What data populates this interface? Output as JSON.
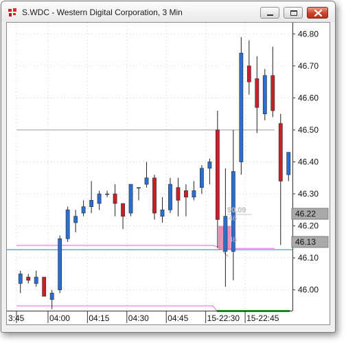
{
  "window": {
    "title": "S.WDC - Western Digital Corporation, 3 Min",
    "icon": "app-logo-icon",
    "buttons": [
      "minimize-icon",
      "maximize-icon",
      "close-icon"
    ]
  },
  "colors": {
    "up": "#2a6fd0",
    "down": "#c8202a",
    "grid": "#cfcfcf",
    "axis": "#333333",
    "pink": "#ef5fe8",
    "blue_line": "#2f7fd8",
    "gray_line": "#9b9b9b",
    "price_box": "#a9a9a9",
    "highlight": "#ea78b0",
    "green_bar": "#19b019"
  },
  "chart_data": {
    "type": "candlestick",
    "y_ticks": [
      "46.80",
      "46.70",
      "46.60",
      "46.50",
      "46.40",
      "46.30",
      "46.20",
      "46.10",
      "46.00"
    ],
    "y_tick_values": [
      46.8,
      46.7,
      46.6,
      46.5,
      46.4,
      46.3,
      46.2,
      46.1,
      46.0
    ],
    "ylim": [
      45.935,
      46.835
    ],
    "x_ticks": [
      "3:45",
      "04:00",
      "04:15",
      "04:30",
      "04:45",
      "15-22:30",
      "15-22:45"
    ],
    "x_tick_index": [
      0,
      4,
      9,
      14,
      19,
      24,
      29
    ],
    "bar_count": 35,
    "candles": [
      {
        "i": 0,
        "o": 46.02,
        "h": 46.06,
        "l": 45.99,
        "c": 46.05
      },
      {
        "i": 1,
        "o": 46.04,
        "h": 46.05,
        "l": 46.02,
        "c": 46.03
      },
      {
        "i": 2,
        "o": 46.02,
        "h": 46.06,
        "l": 46.01,
        "c": 46.04
      },
      {
        "i": 3,
        "o": 46.04,
        "h": 46.04,
        "l": 45.98,
        "c": 45.98
      },
      {
        "i": 4,
        "o": 45.97,
        "h": 46.0,
        "l": 45.94,
        "c": 45.99
      },
      {
        "i": 5,
        "o": 46.0,
        "h": 46.17,
        "l": 45.99,
        "c": 46.16
      },
      {
        "i": 6,
        "o": 46.16,
        "h": 46.26,
        "l": 46.15,
        "c": 46.25
      },
      {
        "i": 7,
        "o": 46.21,
        "h": 46.25,
        "l": 46.18,
        "c": 46.23
      },
      {
        "i": 8,
        "o": 46.24,
        "h": 46.28,
        "l": 46.23,
        "c": 46.26
      },
      {
        "i": 9,
        "o": 46.26,
        "h": 46.34,
        "l": 46.24,
        "c": 46.28
      },
      {
        "i": 10,
        "o": 46.27,
        "h": 46.31,
        "l": 46.25,
        "c": 46.3
      },
      {
        "i": 11,
        "o": 46.3,
        "h": 46.31,
        "l": 46.29,
        "c": 46.3
      },
      {
        "i": 12,
        "o": 46.3,
        "h": 46.33,
        "l": 46.23,
        "c": 46.27
      },
      {
        "i": 13,
        "o": 46.27,
        "h": 46.27,
        "l": 46.19,
        "c": 46.23
      },
      {
        "i": 14,
        "o": 46.24,
        "h": 46.33,
        "l": 46.23,
        "c": 46.33
      },
      {
        "i": 15,
        "o": 46.32,
        "h": 46.32,
        "l": 46.28,
        "c": 46.32
      },
      {
        "i": 16,
        "o": 46.33,
        "h": 46.4,
        "l": 46.32,
        "c": 46.35
      },
      {
        "i": 17,
        "o": 46.35,
        "h": 46.36,
        "l": 46.22,
        "c": 46.24
      },
      {
        "i": 18,
        "o": 46.23,
        "h": 46.29,
        "l": 46.21,
        "c": 46.25
      },
      {
        "i": 19,
        "o": 46.25,
        "h": 46.35,
        "l": 46.24,
        "c": 46.33
      },
      {
        "i": 20,
        "o": 46.32,
        "h": 46.35,
        "l": 46.23,
        "c": 46.28
      },
      {
        "i": 21,
        "o": 46.31,
        "h": 46.33,
        "l": 46.23,
        "c": 46.29
      },
      {
        "i": 22,
        "o": 46.29,
        "h": 46.34,
        "l": 46.28,
        "c": 46.31
      },
      {
        "i": 23,
        "o": 46.32,
        "h": 46.39,
        "l": 46.3,
        "c": 46.38
      },
      {
        "i": 24,
        "o": 46.38,
        "h": 46.41,
        "l": 46.33,
        "c": 46.4
      },
      {
        "i": 25,
        "o": 46.5,
        "h": 46.56,
        "l": 46.13,
        "c": 46.22
      },
      {
        "i": 26,
        "o": 46.12,
        "h": 46.38,
        "l": 46.01,
        "c": 46.23
      },
      {
        "i": 27,
        "o": 46.12,
        "h": 46.5,
        "l": 46.03,
        "c": 46.37
      },
      {
        "i": 28,
        "o": 46.4,
        "h": 46.79,
        "l": 46.36,
        "c": 46.74
      },
      {
        "i": 29,
        "o": 46.7,
        "h": 46.78,
        "l": 46.61,
        "c": 46.65
      },
      {
        "i": 30,
        "o": 46.66,
        "h": 46.73,
        "l": 46.49,
        "c": 46.57
      },
      {
        "i": 31,
        "o": 46.55,
        "h": 46.69,
        "l": 46.53,
        "c": 46.67
      },
      {
        "i": 32,
        "o": 46.67,
        "h": 46.76,
        "l": 46.54,
        "c": 46.56
      },
      {
        "i": 33,
        "o": 46.52,
        "h": 46.55,
        "l": 46.14,
        "c": 46.34
      },
      {
        "i": 34,
        "o": 46.36,
        "h": 46.43,
        "l": 46.34,
        "c": 46.43
      }
    ],
    "h_lines": [
      {
        "name": "gray-reference-line",
        "value": 46.5
      },
      {
        "name": "blue-current-price-line",
        "value": 46.13
      },
      {
        "name": "pink-upper-order-line",
        "value": 46.139
      },
      {
        "name": "pink-lower-order-line",
        "value": 45.95
      }
    ],
    "price_boxes": [
      "46.22",
      "46.13"
    ],
    "annotations": {
      "pl_value": "$0.09",
      "qty_upper": "46",
      "qty_lower": "46"
    }
  }
}
